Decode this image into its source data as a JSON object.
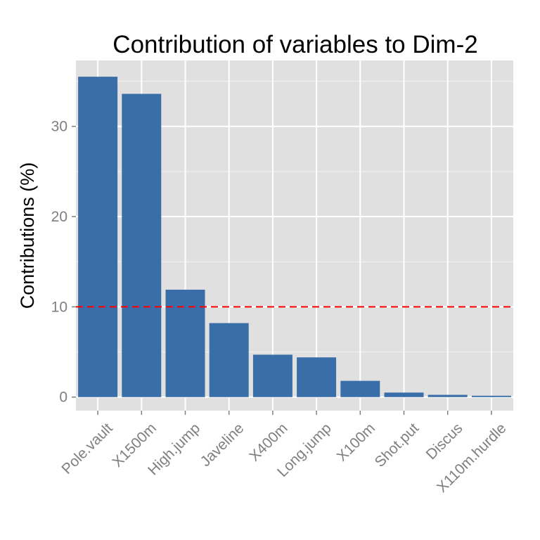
{
  "chart_data": {
    "type": "bar",
    "title": "Contribution of variables to Dim-2",
    "xlabel": "",
    "ylabel": "Contributions (%)",
    "categories": [
      "Pole.vault",
      "X1500m",
      "High.jump",
      "Javeline",
      "X400m",
      "Long.jump",
      "X100m",
      "Shot.put",
      "Discus",
      "X110m.hurdle"
    ],
    "values": [
      35.5,
      33.6,
      11.9,
      8.2,
      4.7,
      4.4,
      1.8,
      0.5,
      0.25,
      0.15
    ],
    "y_ticks": [
      0,
      10,
      20,
      30
    ],
    "ylim": [
      -1.5,
      37.3
    ],
    "reference_line": {
      "value": 10,
      "color": "#ff0000",
      "style": "dashed"
    },
    "grid": true,
    "legend": "none",
    "colors": {
      "bar": "#3a6ea8",
      "panel": "#e0e0e0",
      "grid": "#ffffff",
      "tick_label": "#7f7f7f",
      "title": "#000000"
    }
  }
}
